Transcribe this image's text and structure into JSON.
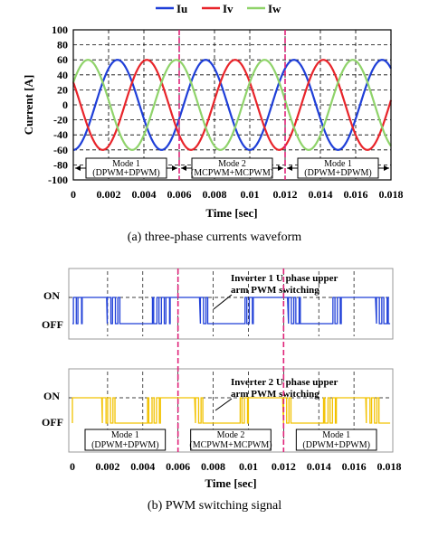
{
  "chart_data": [
    {
      "type": "line",
      "legend": [
        "Iu",
        "Iv",
        "Iw"
      ],
      "legend_placement": "top-center",
      "ylabel": "Current [A]",
      "xlabel": "Time [sec]",
      "ylim": [
        -100,
        100
      ],
      "xlim": [
        0,
        0.018
      ],
      "yticks": [
        "100",
        "80",
        "60",
        "40",
        "20",
        "0",
        "-20",
        "-40",
        "-60",
        "-80",
        "-100"
      ],
      "xticks": [
        "0",
        "0.002",
        "0.004",
        "0.006",
        "0.008",
        "0.01",
        "0.012",
        "0.014",
        "0.016",
        "0.018"
      ],
      "grid": true,
      "frequency_hz": 200,
      "series": [
        {
          "name": "Iu",
          "amplitude": 60,
          "phase_deg": -90
        },
        {
          "name": "Iv",
          "amplitude": 60,
          "phase_deg": 150
        },
        {
          "name": "Iw",
          "amplitude": 60,
          "phase_deg": 30
        }
      ],
      "mode_boundaries": [
        0.006,
        0.012
      ],
      "modes": [
        {
          "line1": "Mode 1",
          "line2": "(DPWM+DPWM)",
          "start": 0,
          "end": 0.006
        },
        {
          "line1": "Mode 2",
          "line2": "(MCPWM+MCPWM)",
          "start": 0.006,
          "end": 0.012
        },
        {
          "line1": "Mode 1",
          "line2": "(DPWM+DPWM)",
          "start": 0.012,
          "end": 0.018
        }
      ],
      "caption": "(a) three-phase currents waveform"
    },
    {
      "type": "line",
      "xlabel": "Time [sec]",
      "xlim": [
        0,
        0.018
      ],
      "xticks": [
        "0",
        "0.002",
        "0.004",
        "0.006",
        "0.008",
        "0.01",
        "0.012",
        "0.014",
        "0.016",
        "0.018"
      ],
      "levels": [
        "ON",
        "OFF"
      ],
      "mode_boundaries": [
        0.006,
        0.012
      ],
      "panels": [
        {
          "annotation_line1": "Inverter 1 U phase upper",
          "annotation_line2": "arm PWM switching",
          "color": "#1f3fd8"
        },
        {
          "annotation_line1": "Inverter 2 U phase upper",
          "annotation_line2": "arm PWM switching",
          "color": "#f2c200"
        }
      ],
      "modes": [
        {
          "line1": "Mode 1",
          "line2": "(DPWM+DPWM)"
        },
        {
          "line1": "Mode 2",
          "line2": "(MCPWM+MCPWM)"
        },
        {
          "line1": "Mode 1",
          "line2": "(DPWM+DPWM)"
        }
      ],
      "caption": "(b) PWM switching signal"
    }
  ],
  "colors": {
    "Iu": "#1f3fd8",
    "Iv": "#e8242a",
    "Iw": "#8fd36a",
    "mode_line": "#e0247a"
  }
}
